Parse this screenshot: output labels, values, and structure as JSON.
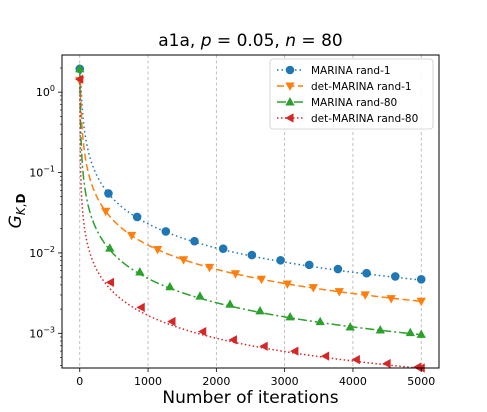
{
  "chart_data": {
    "type": "line",
    "title_parts": [
      "a1a, ",
      "p",
      " = 0.05, ",
      "n",
      " = 80"
    ],
    "xlabel": "Number of iterations",
    "ylabel_main": "G",
    "ylabel_sub_italic": "K",
    "ylabel_sub_comma": ",",
    "ylabel_sub_bold": "D",
    "x_range": [
      -260,
      5260
    ],
    "y_range": [
      0.00037,
      2.9
    ],
    "y_scale": "log",
    "grid": "vertical",
    "legend_position": "top-right",
    "x_ticks": [
      0,
      1000,
      2000,
      3000,
      4000,
      5000
    ],
    "x_tick_labels": [
      "0",
      "1000",
      "2000",
      "3000",
      "4000",
      "5000"
    ],
    "y_ticks": [
      {
        "value": 1,
        "base": "10",
        "exp": "0"
      },
      {
        "value": 0.1,
        "base": "10",
        "exp": "−1"
      },
      {
        "value": 0.01,
        "base": "10",
        "exp": "−2"
      },
      {
        "value": 0.001,
        "base": "10",
        "exp": "−3"
      }
    ],
    "series": [
      {
        "name": "MARINA rand-1",
        "color": "#1f77b4",
        "dash": "1.5,3",
        "marker": "circle",
        "amplitude": 23.0,
        "exponent": 1.0,
        "x": [
          0,
          420,
          840,
          1260,
          1680,
          2100,
          2520,
          2940,
          3360,
          3780,
          4200,
          4620,
          5000
        ],
        "y": [
          1.95,
          0.055,
          0.028,
          0.0185,
          0.014,
          0.0113,
          0.0094,
          0.0081,
          0.0071,
          0.0063,
          0.0056,
          0.0051,
          0.0047
        ]
      },
      {
        "name": "det-MARINA rand-1",
        "color": "#ff7f0e",
        "dash": "7,3.5",
        "marker": "triangle-down",
        "amplitude": 12.5,
        "exponent": 1.0,
        "x": [
          0,
          380,
          760,
          1140,
          1520,
          1900,
          2280,
          2660,
          3040,
          3420,
          3800,
          4180,
          4560,
          5000
        ],
        "y": [
          1.4,
          0.033,
          0.0165,
          0.011,
          0.0082,
          0.0066,
          0.0055,
          0.0047,
          0.0041,
          0.0037,
          0.0033,
          0.003,
          0.0027,
          0.0025
        ]
      },
      {
        "name": "MARINA rand-80",
        "color": "#2ca02c",
        "dash": "9,3,2,3",
        "marker": "triangle-up",
        "amplitude": 4.8,
        "exponent": 1.0,
        "x": [
          0,
          440,
          880,
          1320,
          1760,
          2200,
          2640,
          3080,
          3520,
          3960,
          4400,
          4840,
          5000
        ],
        "y": [
          1.95,
          0.0115,
          0.0058,
          0.0038,
          0.0029,
          0.0023,
          0.0019,
          0.0016,
          0.0014,
          0.0012,
          0.0011,
          0.00102,
          0.00097
        ]
      },
      {
        "name": "det-MARINA rand-80",
        "color": "#d62728",
        "dash": "1.5,2.5",
        "marker": "triangle-left",
        "amplitude": 1.1,
        "exponent": 0.94,
        "x": [
          0,
          450,
          900,
          1350,
          1800,
          2250,
          2700,
          3150,
          3600,
          4050,
          4500,
          4950,
          5000
        ],
        "y": [
          1.45,
          0.0043,
          0.0021,
          0.0014,
          0.00105,
          0.00083,
          0.00069,
          0.0006,
          0.00052,
          0.00047,
          0.00042,
          0.00038,
          0.00037
        ]
      }
    ]
  }
}
